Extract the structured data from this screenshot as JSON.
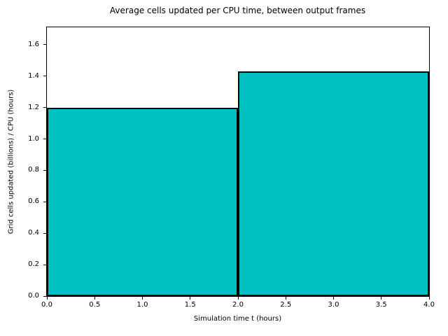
{
  "figure": {
    "background_color": "#ffffff",
    "text_color": "#000000"
  },
  "chart_data": {
    "type": "bar",
    "title": "Average cells updated per CPU time, between output frames",
    "xlabel": "Simulation time t (hours)",
    "ylabel": "Grid cells updated (billions) / CPU (hours)",
    "xlim": [
      0,
      4
    ],
    "ylim": [
      0,
      1.711
    ],
    "bars": [
      {
        "x_start": 0,
        "x_end": 2,
        "value": 1.2
      },
      {
        "x_start": 2,
        "x_end": 4,
        "value": 1.43
      }
    ],
    "xticks": {
      "values": [
        0,
        0.5,
        1,
        1.5,
        2,
        2.5,
        3,
        3.5,
        4
      ],
      "labels": [
        "0.0",
        "0.5",
        "1.0",
        "1.5",
        "2.0",
        "2.5",
        "3.0",
        "3.5",
        "4.0"
      ]
    },
    "yticks": {
      "values": [
        0,
        0.2,
        0.4,
        0.6,
        0.8,
        1,
        1.2,
        1.4,
        1.6
      ],
      "labels": [
        "0.0",
        "0.2",
        "0.4",
        "0.6",
        "0.8",
        "1.0",
        "1.2",
        "1.4",
        "1.6"
      ]
    },
    "fill_color": "#00bfc0",
    "edge_color": "#000000",
    "grid": false,
    "legend_position": "none"
  }
}
